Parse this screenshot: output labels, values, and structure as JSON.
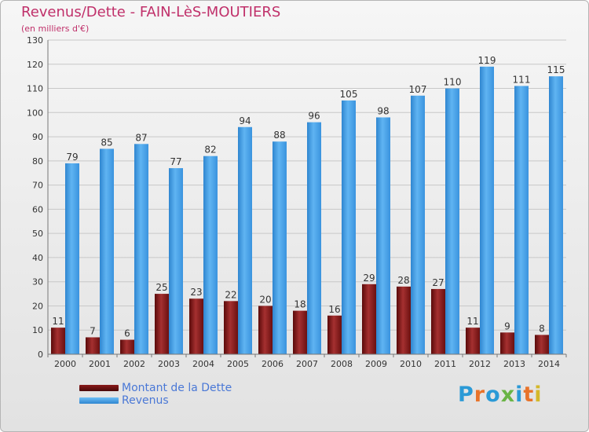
{
  "title": "Revenus/Dette - FAIN-LèS-MOUTIERS",
  "subtitle": "(en milliers d'€)",
  "logo": {
    "text": "Proxiti",
    "colors": [
      "#2b9ad6",
      "#e8732a",
      "#2b9ad6",
      "#6ab445",
      "#2b9ad6",
      "#e8732a",
      "#d4b82a"
    ]
  },
  "colors": {
    "dette": "#7a1414",
    "revenus": "#3f9fe6",
    "text": "#333333",
    "grid": "#c8c8c8"
  },
  "chart_data": {
    "type": "bar",
    "title": "Revenus/Dette - FAIN-LèS-MOUTIERS",
    "subtitle": "(en milliers d'€)",
    "categories": [
      "2000",
      "2001",
      "2002",
      "2003",
      "2004",
      "2005",
      "2006",
      "2007",
      "2008",
      "2009",
      "2010",
      "2011",
      "2012",
      "2013",
      "2014"
    ],
    "series": [
      {
        "name": "Montant de la Dette",
        "values": [
          11,
          7,
          6,
          25,
          23,
          22,
          20,
          18,
          16,
          29,
          28,
          27,
          11,
          9,
          8
        ]
      },
      {
        "name": "Revenus",
        "values": [
          79,
          85,
          87,
          77,
          82,
          94,
          88,
          96,
          105,
          98,
          107,
          110,
          119,
          111,
          115
        ]
      }
    ],
    "ylim": [
      0,
      130
    ],
    "yticks": [
      0,
      10,
      20,
      30,
      40,
      50,
      60,
      70,
      80,
      90,
      100,
      110,
      120,
      130
    ],
    "grid": true,
    "legend": "bottom-left"
  }
}
